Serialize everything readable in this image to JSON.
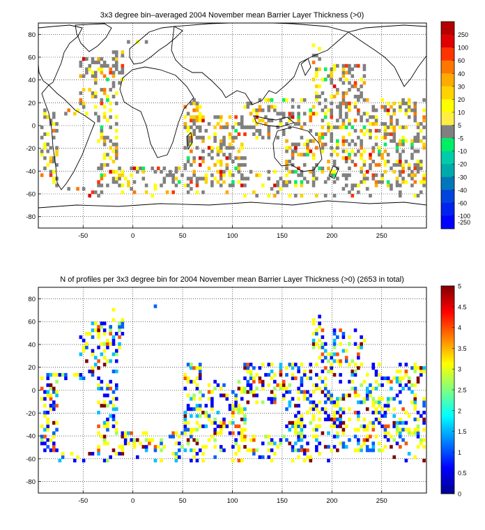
{
  "chart_data": [
    {
      "type": "heatmap",
      "title": "3x3 degree bin–averaged 2004 November mean Barrier Layer Thickness (>0)",
      "xlim": [
        -95,
        295
      ],
      "ylim": [
        -90,
        90
      ],
      "x_ticks": [
        "-50",
        "0",
        "50",
        "100",
        "150",
        "200",
        "250"
      ],
      "y_ticks": [
        "80",
        "60",
        "40",
        "20",
        "0",
        "-20",
        "-40",
        "-60",
        "-80"
      ],
      "grid": "dotted",
      "colorbar": {
        "position": "right",
        "labels": [
          "250",
          "100",
          "60",
          "40",
          "30",
          "20",
          "10",
          "5",
          "-5",
          "-10",
          "-20",
          "-30",
          "-40",
          "-60",
          "-100",
          "-250"
        ],
        "colors": [
          "#b40000",
          "#e00000",
          "#ff3300",
          "#ff7700",
          "#ffaa00",
          "#ffd200",
          "#ffff00",
          "#ffee44",
          "#808080",
          "#00ee66",
          "#00ccaa",
          "#00aaaa",
          "#0077bb",
          "#0044dd",
          "#0022ee",
          "#0000ff"
        ]
      }
    },
    {
      "type": "heatmap",
      "title": "N of profiles per 3x3 degree bin for 2004 November mean Barrier Layer Thickness (>0) (2653 in total)",
      "xlim": [
        -95,
        295
      ],
      "ylim": [
        -90,
        90
      ],
      "x_ticks": [
        "-50",
        "0",
        "50",
        "100",
        "150",
        "200",
        "250"
      ],
      "y_ticks": [
        "80",
        "60",
        "40",
        "20",
        "0",
        "-20",
        "-40",
        "-60",
        "-80"
      ],
      "grid": "dotted",
      "colorbar": {
        "position": "right",
        "min": 0,
        "max": 5,
        "labels": [
          "5",
          "4.5",
          "4",
          "3.5",
          "3",
          "2.5",
          "2",
          "1.5",
          "1",
          "0.5",
          "0"
        ],
        "colormap": "jet"
      }
    }
  ]
}
